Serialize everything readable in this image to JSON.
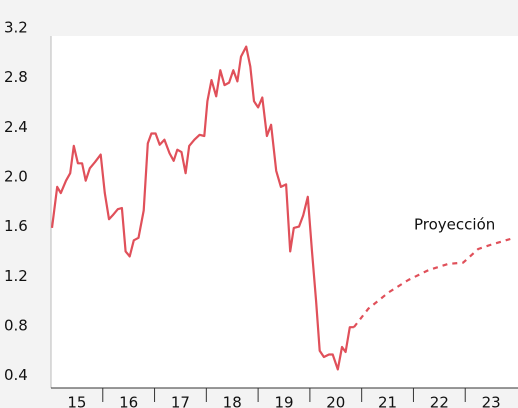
{
  "chart_data": {
    "type": "line",
    "annotation": "Proyección",
    "xlim": [
      15,
      24
    ],
    "xticks": [
      {
        "value": 15.5,
        "label": "15"
      },
      {
        "value": 16.5,
        "label": "16"
      },
      {
        "value": 17.5,
        "label": "17"
      },
      {
        "value": 18.5,
        "label": "18"
      },
      {
        "value": 19.5,
        "label": "19"
      },
      {
        "value": 20.5,
        "label": "20"
      },
      {
        "value": 21.5,
        "label": "21"
      },
      {
        "value": 22.5,
        "label": "22"
      },
      {
        "value": 23.5,
        "label": "23"
      }
    ],
    "xminorticks": [
      16,
      17,
      18,
      19,
      20,
      21,
      22,
      23
    ],
    "ylim": [
      0.3,
      3.2
    ],
    "yticks": [
      0.4,
      0.8,
      1.2,
      1.6,
      {
        "value": 2,
        "label": "2.0"
      },
      2.4,
      2.8,
      3.2
    ],
    "series": [
      {
        "color": "#e0505a",
        "dashed": false,
        "x": [
          15.02,
          15.12,
          15.19,
          15.29,
          15.37,
          15.44,
          15.52,
          15.6,
          15.67,
          15.75,
          15.85,
          15.96,
          16.04,
          16.12,
          16.19,
          16.29,
          16.37,
          16.44,
          16.52,
          16.6,
          16.69,
          16.79,
          16.87,
          16.94,
          17.02,
          17.1,
          17.19,
          17.29,
          17.37,
          17.44,
          17.52,
          17.6,
          17.67,
          17.77,
          17.87,
          17.96,
          18.02,
          18.1,
          18.19,
          18.27,
          18.35,
          18.44,
          18.52,
          18.6,
          18.67,
          18.77,
          18.85,
          18.92,
          19.0,
          19.08,
          19.17,
          19.25,
          19.35,
          19.44,
          19.54,
          19.62,
          19.69,
          19.79,
          19.87,
          19.96,
          20.04,
          20.12,
          20.19,
          20.27,
          20.37,
          20.44,
          20.54,
          20.62,
          20.69,
          20.77,
          20.85
        ],
        "values": [
          1.59,
          1.92,
          1.87,
          1.97,
          2.03,
          2.25,
          2.11,
          2.11,
          1.97,
          2.07,
          2.12,
          2.18,
          1.87,
          1.66,
          1.69,
          1.74,
          1.75,
          1.4,
          1.36,
          1.49,
          1.51,
          1.73,
          2.27,
          2.35,
          2.35,
          2.26,
          2.3,
          2.19,
          2.13,
          2.22,
          2.2,
          2.03,
          2.25,
          2.3,
          2.34,
          2.33,
          2.61,
          2.78,
          2.65,
          2.86,
          2.74,
          2.76,
          2.86,
          2.77,
          2.97,
          3.05,
          2.89,
          2.61,
          2.56,
          2.64,
          2.33,
          2.42,
          2.05,
          1.92,
          1.94,
          1.4,
          1.59,
          1.6,
          1.69,
          1.84,
          1.4,
          1.0,
          0.6,
          0.55,
          0.57,
          0.57,
          0.45,
          0.63,
          0.59,
          0.79,
          0.79
        ]
      },
      {
        "color": "#e0505a",
        "dashed": true,
        "x": [
          20.85,
          21.13,
          21.52,
          21.9,
          22.29,
          22.67,
          22.96,
          23.25,
          23.54,
          23.87
        ],
        "values": [
          0.79,
          0.94,
          1.07,
          1.17,
          1.25,
          1.3,
          1.31,
          1.42,
          1.46,
          1.5
        ]
      }
    ]
  }
}
